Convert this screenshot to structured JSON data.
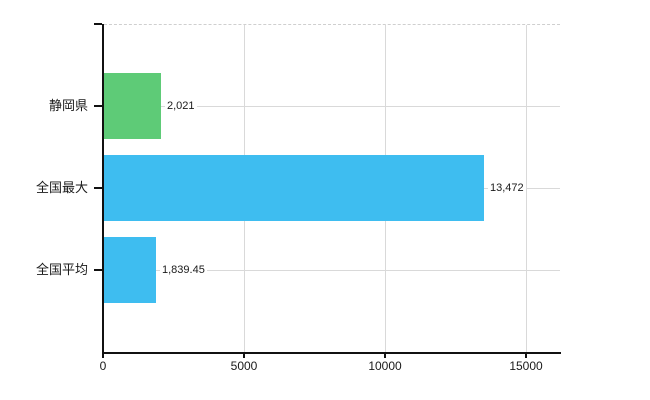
{
  "chart_data": {
    "type": "bar",
    "orientation": "horizontal",
    "title": "",
    "categories": [
      "静岡県",
      "全国最大",
      "全国平均"
    ],
    "values": [
      2021,
      13472,
      1839.45
    ],
    "value_labels": [
      "2,021",
      "13,472",
      "1,839.45"
    ],
    "bar_colors": [
      "#5ecb77",
      "#3ebdf0",
      "#3ebdf0"
    ],
    "x_ticks": [
      0,
      5000,
      10000,
      15000
    ],
    "x_tick_labels": [
      "0",
      "5000",
      "10000",
      "15000"
    ],
    "xlim": [
      0,
      16190
    ],
    "grid": true,
    "legend": false,
    "background": "#ffffff"
  },
  "colors": {
    "grid": "#d9d9d9",
    "top_border": "#cfcfcf",
    "axis": "#111111",
    "text": "#1a1a1a",
    "green_bar": "#5ecb77",
    "blue_bar": "#3ebdf0"
  }
}
